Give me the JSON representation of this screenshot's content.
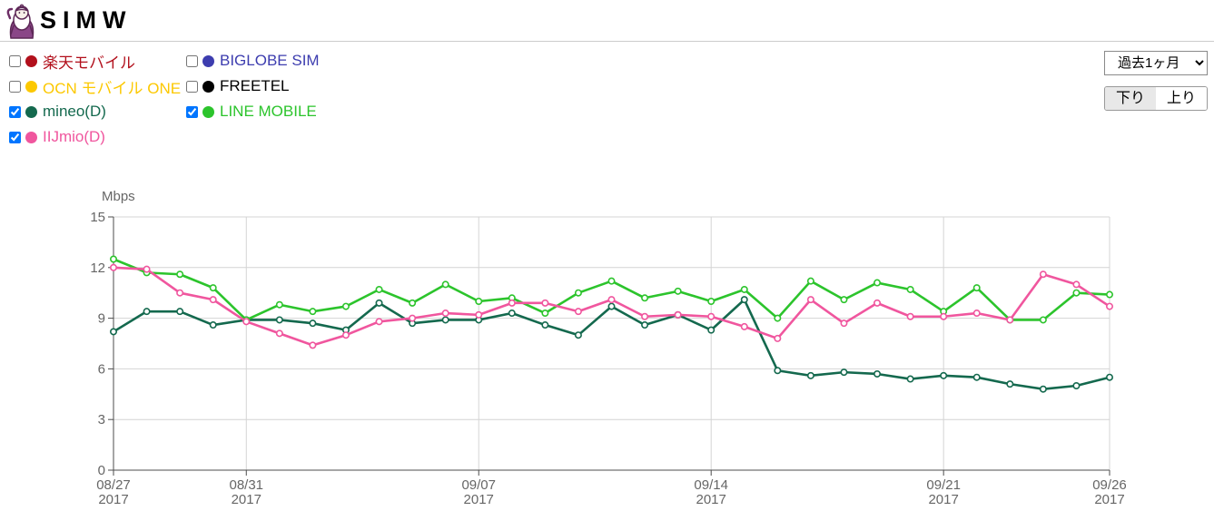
{
  "header": {
    "brand": "SIMW",
    "logo_icon": "wizard-mascot-icon"
  },
  "controls": {
    "period_selected": "過去1ヶ月",
    "direction_download": "下り",
    "direction_upload": "上り",
    "direction_active": "下り"
  },
  "legend": {
    "column1": [
      {
        "label": "楽天モバイル",
        "color": "#b2101c",
        "checked": false
      },
      {
        "label": "OCN モバイル ONE",
        "color": "#fcc800",
        "checked": false
      },
      {
        "label": "mineo(D)",
        "color": "#14694e",
        "checked": true
      },
      {
        "label": "IIJmio(D)",
        "color": "#f0569e",
        "checked": true
      }
    ],
    "column2": [
      {
        "label": "BIGLOBE SIM",
        "color": "#3d3daf",
        "checked": false
      },
      {
        "label": "FREETEL",
        "color": "#000000",
        "checked": false
      },
      {
        "label": "LINE MOBILE",
        "color": "#2cc42c",
        "checked": true
      }
    ]
  },
  "chart_data": {
    "type": "line",
    "title": "",
    "ylabel": "Mbps",
    "ylim": [
      0,
      15
    ],
    "yticks": [
      0,
      3,
      6,
      9,
      12,
      15
    ],
    "num_points": 31,
    "x_axis_note": "daily values 08/27/2017 - 09/26/2017",
    "x_tick_labels": [
      {
        "index": 0,
        "line1": "08/27",
        "line2": "2017"
      },
      {
        "index": 4,
        "line1": "08/31",
        "line2": "2017"
      },
      {
        "index": 11,
        "line1": "09/07",
        "line2": "2017"
      },
      {
        "index": 18,
        "line1": "09/14",
        "line2": "2017"
      },
      {
        "index": 25,
        "line1": "09/21",
        "line2": "2017"
      },
      {
        "index": 30,
        "line1": "09/26",
        "line2": "2017"
      }
    ],
    "grid": true,
    "legend_position": "top-left",
    "series": [
      {
        "name": "mineo(D)",
        "color": "#14694e",
        "values": [
          8.2,
          9.4,
          9.4,
          8.6,
          8.9,
          8.9,
          8.7,
          8.3,
          9.9,
          8.7,
          8.9,
          8.9,
          9.3,
          8.6,
          8.0,
          9.7,
          8.6,
          9.2,
          8.3,
          10.1,
          5.9,
          5.6,
          5.8,
          5.7,
          5.4,
          5.6,
          5.5,
          5.1,
          4.8,
          5.0,
          5.5
        ]
      },
      {
        "name": "LINE MOBILE",
        "color": "#2cc42c",
        "values": [
          12.5,
          11.7,
          11.6,
          10.8,
          8.9,
          9.8,
          9.4,
          9.7,
          10.7,
          9.9,
          11.0,
          10.0,
          10.2,
          9.3,
          10.5,
          11.2,
          10.2,
          10.6,
          10.0,
          10.7,
          9.0,
          11.2,
          10.1,
          11.1,
          10.7,
          9.4,
          10.8,
          8.9,
          8.9,
          10.5,
          10.4
        ]
      },
      {
        "name": "IIJmio(D)",
        "color": "#f0569e",
        "values": [
          12.0,
          11.9,
          10.5,
          10.1,
          8.8,
          8.1,
          7.4,
          8.0,
          8.8,
          9.0,
          9.3,
          9.2,
          9.9,
          9.9,
          9.4,
          10.1,
          9.1,
          9.2,
          9.1,
          8.5,
          7.8,
          10.1,
          8.7,
          9.9,
          9.1,
          9.1,
          9.3,
          8.9,
          11.6,
          11.0,
          9.7
        ]
      }
    ]
  }
}
